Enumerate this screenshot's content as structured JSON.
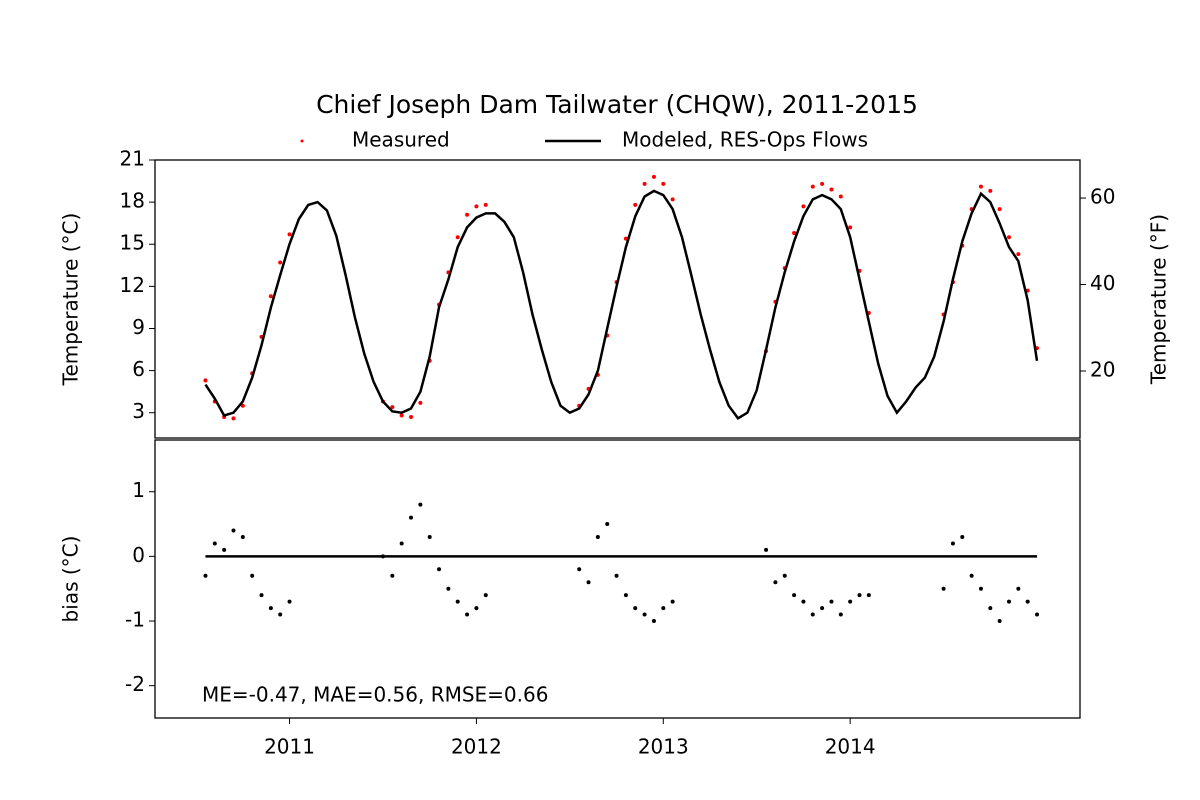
{
  "chart_data": [
    {
      "type": "line",
      "title": "Chief Joseph Dam Tailwater (CHQW), 2011-2015",
      "y_label": "Temperature (°C)",
      "y2_label": "Temperature (°F)",
      "legend": "upper center",
      "x": [
        2010.55,
        2010.6,
        2010.65,
        2010.7,
        2010.75,
        2010.8,
        2010.85,
        2010.9,
        2010.95,
        2011.0,
        2011.05,
        2011.1,
        2011.15,
        2011.2,
        2011.25,
        2011.3,
        2011.35,
        2011.4,
        2011.45,
        2011.5,
        2011.55,
        2011.6,
        2011.65,
        2011.7,
        2011.75,
        2011.8,
        2011.85,
        2011.9,
        2011.95,
        2012.0,
        2012.05,
        2012.1,
        2012.15,
        2012.2,
        2012.25,
        2012.3,
        2012.35,
        2012.4,
        2012.45,
        2012.5,
        2012.55,
        2012.6,
        2012.65,
        2012.7,
        2012.75,
        2012.8,
        2012.85,
        2012.9,
        2012.95,
        2013.0,
        2013.05,
        2013.1,
        2013.15,
        2013.2,
        2013.25,
        2013.3,
        2013.35,
        2013.4,
        2013.45,
        2013.5,
        2013.55,
        2013.6,
        2013.65,
        2013.7,
        2013.75,
        2013.8,
        2013.85,
        2013.9,
        2013.95,
        2014.0,
        2014.05,
        2014.1,
        2014.15,
        2014.2,
        2014.25,
        2014.3,
        2014.35,
        2014.4,
        2014.45,
        2014.5,
        2014.55,
        2014.6,
        2014.65,
        2014.7,
        2014.75,
        2014.8,
        2014.85,
        2014.9,
        2014.95,
        2015.0
      ],
      "series": [
        {
          "name": "Measured",
          "color": "#ff0000",
          "style": "points",
          "values": [
            5.3,
            3.8,
            2.7,
            2.6,
            3.5,
            5.8,
            8.4,
            11.3,
            13.7,
            15.7,
            null,
            null,
            null,
            null,
            null,
            null,
            null,
            null,
            null,
            3.8,
            3.4,
            2.8,
            2.7,
            3.7,
            6.7,
            10.7,
            13.0,
            15.5,
            17.1,
            17.7,
            17.8,
            null,
            null,
            null,
            null,
            null,
            null,
            null,
            null,
            null,
            3.5,
            4.7,
            5.7,
            8.5,
            12.3,
            15.4,
            17.8,
            19.3,
            19.8,
            19.3,
            18.2,
            null,
            null,
            null,
            null,
            null,
            null,
            null,
            null,
            null,
            7.4,
            10.9,
            13.3,
            15.8,
            17.7,
            19.1,
            19.3,
            18.9,
            18.4,
            16.2,
            13.1,
            10.1,
            null,
            null,
            null,
            null,
            null,
            null,
            null,
            10.0,
            12.3,
            14.9,
            17.5,
            19.1,
            18.8,
            17.5,
            15.5,
            14.3,
            11.7,
            7.6
          ]
        },
        {
          "name": "Modeled, RES-Ops Flows",
          "color": "#000000",
          "style": "line",
          "values": [
            5.0,
            4.0,
            2.8,
            3.0,
            3.8,
            5.5,
            7.8,
            10.5,
            12.8,
            15.0,
            16.8,
            17.8,
            18.0,
            17.4,
            15.6,
            12.8,
            9.8,
            7.2,
            5.2,
            3.8,
            3.1,
            3.0,
            3.3,
            4.5,
            7.0,
            10.5,
            12.5,
            14.8,
            16.2,
            16.9,
            17.2,
            17.2,
            16.6,
            15.5,
            13.0,
            10.0,
            7.5,
            5.2,
            3.5,
            3.0,
            3.3,
            4.3,
            6.0,
            9.0,
            12.0,
            14.8,
            17.0,
            18.4,
            18.8,
            18.5,
            17.5,
            15.5,
            12.8,
            10.0,
            7.5,
            5.2,
            3.5,
            2.6,
            3.0,
            4.6,
            7.5,
            10.5,
            13.0,
            15.2,
            17.0,
            18.2,
            18.5,
            18.2,
            17.5,
            15.5,
            12.5,
            9.5,
            6.5,
            4.2,
            3.0,
            3.8,
            4.8,
            5.5,
            7.0,
            9.5,
            12.5,
            15.2,
            17.2,
            18.6,
            18.0,
            16.5,
            14.8,
            13.8,
            11.0,
            6.7
          ]
        }
      ],
      "xlim": [
        2010.28,
        2015.23
      ],
      "ylim": [
        1.2,
        21
      ],
      "yticks": [
        3,
        6,
        9,
        12,
        15,
        18,
        21
      ],
      "y2lim": [
        4.5,
        68.8
      ],
      "y2ticks": [
        20,
        40,
        60
      ]
    },
    {
      "type": "scatter",
      "y_label": "bias (°C)",
      "annotation": "ME=-0.47, MAE=0.56, RMSE=0.66",
      "reference_line": 0,
      "x": [
        2010.55,
        2010.6,
        2010.65,
        2010.7,
        2010.75,
        2010.8,
        2010.85,
        2010.9,
        2010.95,
        2011.0,
        2011.05,
        2011.1,
        2011.15,
        2011.2,
        2011.25,
        2011.3,
        2011.35,
        2011.4,
        2011.45,
        2011.5,
        2011.55,
        2011.6,
        2011.65,
        2011.7,
        2011.75,
        2011.8,
        2011.85,
        2011.9,
        2011.95,
        2012.0,
        2012.05,
        2012.1,
        2012.15,
        2012.2,
        2012.25,
        2012.3,
        2012.35,
        2012.4,
        2012.45,
        2012.5,
        2012.55,
        2012.6,
        2012.65,
        2012.7,
        2012.75,
        2012.8,
        2012.85,
        2012.9,
        2012.95,
        2013.0,
        2013.05,
        2013.1,
        2013.15,
        2013.2,
        2013.25,
        2013.3,
        2013.35,
        2013.4,
        2013.45,
        2013.5,
        2013.55,
        2013.6,
        2013.65,
        2013.7,
        2013.75,
        2013.8,
        2013.85,
        2013.9,
        2013.95,
        2014.0,
        2014.05,
        2014.1,
        2014.15,
        2014.2,
        2014.25,
        2014.3,
        2014.35,
        2014.4,
        2014.45,
        2014.5,
        2014.55,
        2014.6,
        2014.65,
        2014.7,
        2014.75,
        2014.8,
        2014.85,
        2014.9,
        2014.95,
        2015.0
      ],
      "series": [
        {
          "color": "#000000",
          "style": "points",
          "values": [
            -0.3,
            0.2,
            0.1,
            0.4,
            0.3,
            -0.3,
            -0.6,
            -0.8,
            -0.9,
            -0.7,
            null,
            null,
            null,
            null,
            null,
            null,
            null,
            null,
            null,
            0.0,
            -0.3,
            0.2,
            0.6,
            0.8,
            0.3,
            -0.2,
            -0.5,
            -0.7,
            -0.9,
            -0.8,
            -0.6,
            null,
            null,
            null,
            null,
            null,
            null,
            null,
            null,
            null,
            -0.2,
            -0.4,
            0.3,
            0.5,
            -0.3,
            -0.6,
            -0.8,
            -0.9,
            -1.0,
            -0.8,
            -0.7,
            null,
            null,
            null,
            null,
            null,
            null,
            null,
            null,
            null,
            0.1,
            -0.4,
            -0.3,
            -0.6,
            -0.7,
            -0.9,
            -0.8,
            -0.7,
            -0.9,
            -0.7,
            -0.6,
            -0.6,
            null,
            null,
            null,
            null,
            null,
            null,
            null,
            -0.5,
            0.2,
            0.3,
            -0.3,
            -0.5,
            -0.8,
            -1.0,
            -0.7,
            -0.5,
            -0.7,
            -0.9
          ]
        }
      ],
      "xlim": [
        2010.28,
        2015.23
      ],
      "xticks": [
        {
          "value": 2011,
          "label": "2011"
        },
        {
          "value": 2012,
          "label": "2012"
        },
        {
          "value": 2013,
          "label": "2013"
        },
        {
          "value": 2014,
          "label": "2014"
        }
      ],
      "ylim": [
        -2.5,
        1.8
      ],
      "yticks": [
        -2,
        -1,
        0,
        1
      ]
    }
  ]
}
